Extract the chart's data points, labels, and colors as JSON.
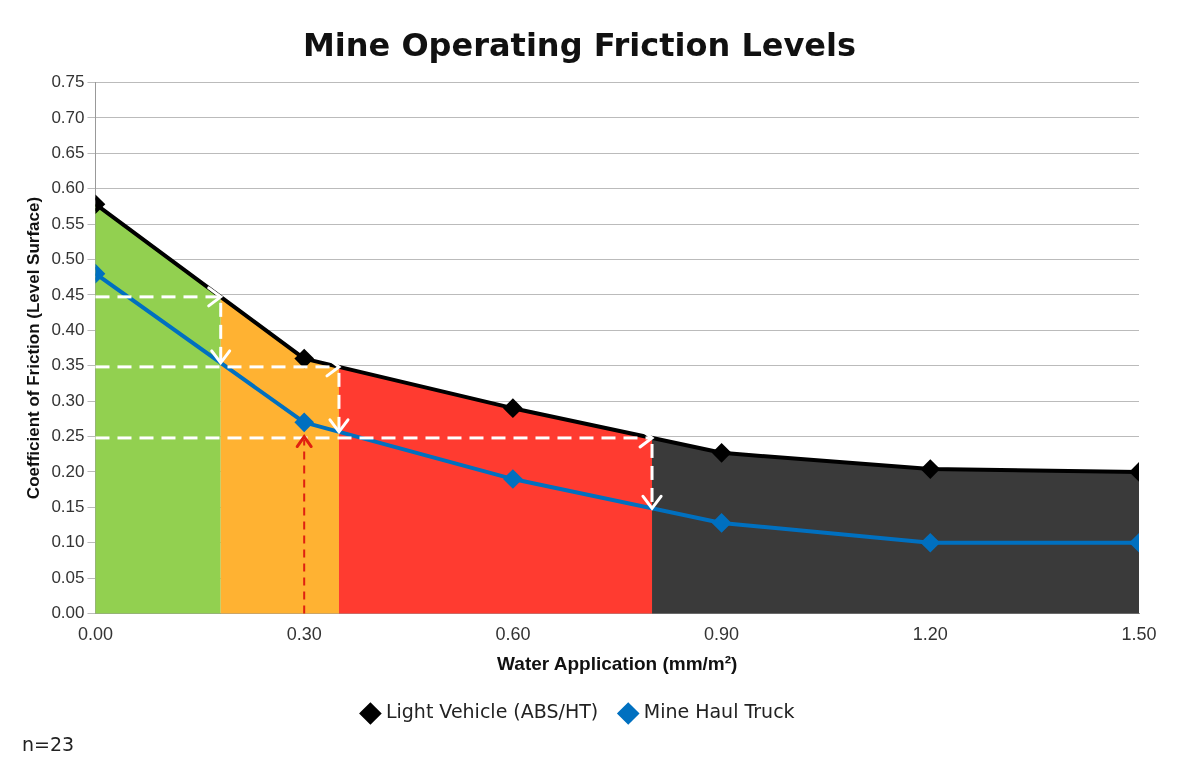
{
  "chart_data": {
    "type": "line",
    "title": "Mine Operating Friction Levels",
    "xlabel": "Water Application (mm/m²)",
    "ylabel": "Coefficient of Friction (Level Surface)",
    "x": [
      0,
      0.3,
      0.6,
      0.9,
      1.2,
      1.5
    ],
    "series": [
      {
        "name": "Light Vehicle (ABS/HT)",
        "color": "#000000",
        "values": [
          0.578,
          0.36,
          0.29,
          0.227,
          0.204,
          0.2
        ]
      },
      {
        "name": "Mine Haul Truck",
        "color": "#0070c0",
        "values": [
          0.48,
          0.27,
          0.19,
          0.128,
          0.1,
          0.1
        ]
      }
    ],
    "bands": [
      {
        "axis": "x",
        "from": 0,
        "to": 0.18,
        "color": "#92d050"
      },
      {
        "axis": "x",
        "from": 0.18,
        "to": 0.35,
        "color": "#ffb232"
      },
      {
        "axis": "x",
        "from": 0.35,
        "to": 0.8,
        "color": "#ff3b30"
      },
      {
        "axis": "x",
        "from": 0.8,
        "to": 1.5,
        "color": "#3a3a3a"
      }
    ],
    "ref_lines": [
      {
        "axis": "x",
        "value": 0.3,
        "color": "#e02010",
        "line_style": "dashed"
      }
    ],
    "xlim": [
      0,
      1.5
    ],
    "ylim": [
      0,
      0.75
    ],
    "xticks": [
      {
        "value": 0,
        "label": "0.00"
      },
      {
        "value": 0.3,
        "label": "0.30"
      },
      {
        "value": 0.6,
        "label": "0.60"
      },
      {
        "value": 0.9,
        "label": "0.90"
      },
      {
        "value": 1.2,
        "label": "1.20"
      },
      {
        "value": 1.5,
        "label": "1.50"
      }
    ],
    "yticks": [
      {
        "value": 0,
        "label": "0.00"
      },
      {
        "value": 0.05,
        "label": "0.05"
      },
      {
        "value": 0.1,
        "label": "0.10"
      },
      {
        "value": 0.15,
        "label": "0.15"
      },
      {
        "value": 0.2,
        "label": "0.20"
      },
      {
        "value": 0.25,
        "label": "0.25"
      },
      {
        "value": 0.3,
        "label": "0.30"
      },
      {
        "value": 0.35,
        "label": "0.35"
      },
      {
        "value": 0.4,
        "label": "0.40"
      },
      {
        "value": 0.45,
        "label": "0.45"
      },
      {
        "value": 0.5,
        "label": "0.50"
      },
      {
        "value": 0.55,
        "label": "0.55"
      },
      {
        "value": 0.6,
        "label": "0.60"
      },
      {
        "value": 0.65,
        "label": "0.65"
      },
      {
        "value": 0.7,
        "label": "0.70"
      },
      {
        "value": 0.75,
        "label": "0.75"
      }
    ],
    "grid": "y",
    "legend": "bottom",
    "marker": "diamond",
    "annotations": [
      "n=23"
    ]
  }
}
